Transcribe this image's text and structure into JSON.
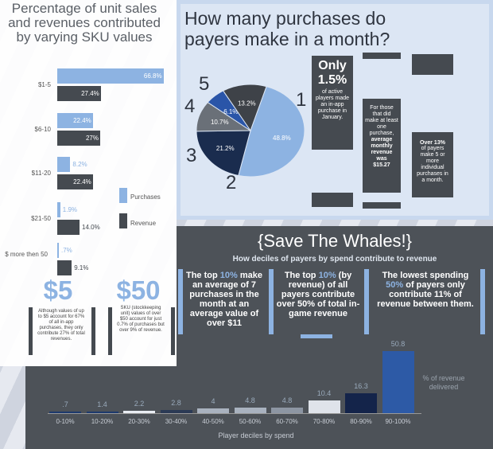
{
  "left": {
    "title": "Percentage of unit sales and revenues contributed by varying SKU values",
    "legend": {
      "purchases": "Purchases",
      "revenue": "Revenue"
    },
    "big1": "$5",
    "big2": "$50",
    "note1": "Although values of up to $5 account for 67% of all in-app purchases, they only contribute 27% of total revenues.",
    "note2": "SKU (stockkeeping unit) values of over $50 account for just 0.7% of purchases but over 9% of revenue."
  },
  "pie": {
    "title": "How many purchases do payers make in a month?",
    "labels": [
      "1",
      "2",
      "3",
      "4",
      "5"
    ],
    "box1": {
      "big": "Only",
      "pct": "1.5%",
      "text": "of active players made an in-app purchase in January."
    },
    "box2": {
      "text": "For those that did make at least one purchase,",
      "bold": "average monthly revenue was",
      "val": "$15.27"
    },
    "box3": {
      "bold": "Over 13%",
      "text": "of payers make 5 or more individual purchases in a month."
    }
  },
  "whales": {
    "title": "{Save The Whales!}",
    "subtitle": "How deciles of payers by spend contribute to revenue",
    "col1a": "The top ",
    "col1hl": "10%",
    "col1b": " make an average of 7 purchases in the month at an average value of over $11",
    "col2a": "The top ",
    "col2hl": "10%",
    "col2b": " (by revenue) of all payers contribute over 50% of total in-game revenue",
    "col3a": "The lowest spending ",
    "col3hl": "50%",
    "col3b": " of payers only contribute 11% of revenue between them."
  },
  "chart_data": [
    {
      "type": "bar",
      "categories": [
        "$1-5",
        "$6-10",
        "$11-20",
        "$21-50",
        "$ more then 50"
      ],
      "series": [
        {
          "name": "Purchases",
          "values": [
            66.8,
            22.4,
            8.2,
            1.9,
            0.7
          ],
          "labels": [
            "66.8%",
            "22.4%",
            "8.2%",
            "1.9%",
            ".7%"
          ],
          "color": "#8db3e2"
        },
        {
          "name": "Revenue",
          "values": [
            27.4,
            27,
            22.4,
            14.0,
            9.1
          ],
          "labels": [
            "27.4%",
            "27%",
            "22.4%",
            "14.0%",
            "9.1%"
          ],
          "color": "#454a50"
        }
      ]
    },
    {
      "type": "pie",
      "slices": [
        {
          "label": "1",
          "value": 48.8,
          "text": "48.8%",
          "color": "#8db3e2"
        },
        {
          "label": "2",
          "value": 21.2,
          "text": "21.2%",
          "color": "#1a2c4e"
        },
        {
          "label": "3",
          "value": 10.7,
          "text": "10.7%",
          "color": "#6a7078"
        },
        {
          "label": "4",
          "value": 6.1,
          "text": "6.1%",
          "color": "#2a55a8"
        },
        {
          "label": "5",
          "value": 13.2,
          "text": "13.2%",
          "color": "#3e4248"
        }
      ]
    },
    {
      "type": "bar",
      "categories": [
        "0-10%",
        "10-20%",
        "20-30%",
        "30-40%",
        "40-50%",
        "50-60%",
        "60-70%",
        "70-80%",
        "80-90%",
        "90-100%"
      ],
      "values": [
        0.7,
        1.4,
        2.2,
        2.8,
        4,
        4.8,
        4.8,
        10.4,
        16.3,
        50.8
      ],
      "labels": [
        ".7",
        "1.4",
        "2.2",
        "2.8",
        "4",
        "4.8",
        "4.8",
        "10.4",
        "16.3",
        "50.8"
      ],
      "colors": [
        "#1d3a6e",
        "#1d3a6e",
        "#e8ecf2",
        "#2b3a55",
        "#a9b2bf",
        "#a9b2bf",
        "#8d96a3",
        "#dfe3ea",
        "#14244a",
        "#2d5aa6"
      ],
      "xlabel": "Player deciles by spend",
      "ylabel": "% of revenue delivered"
    }
  ]
}
